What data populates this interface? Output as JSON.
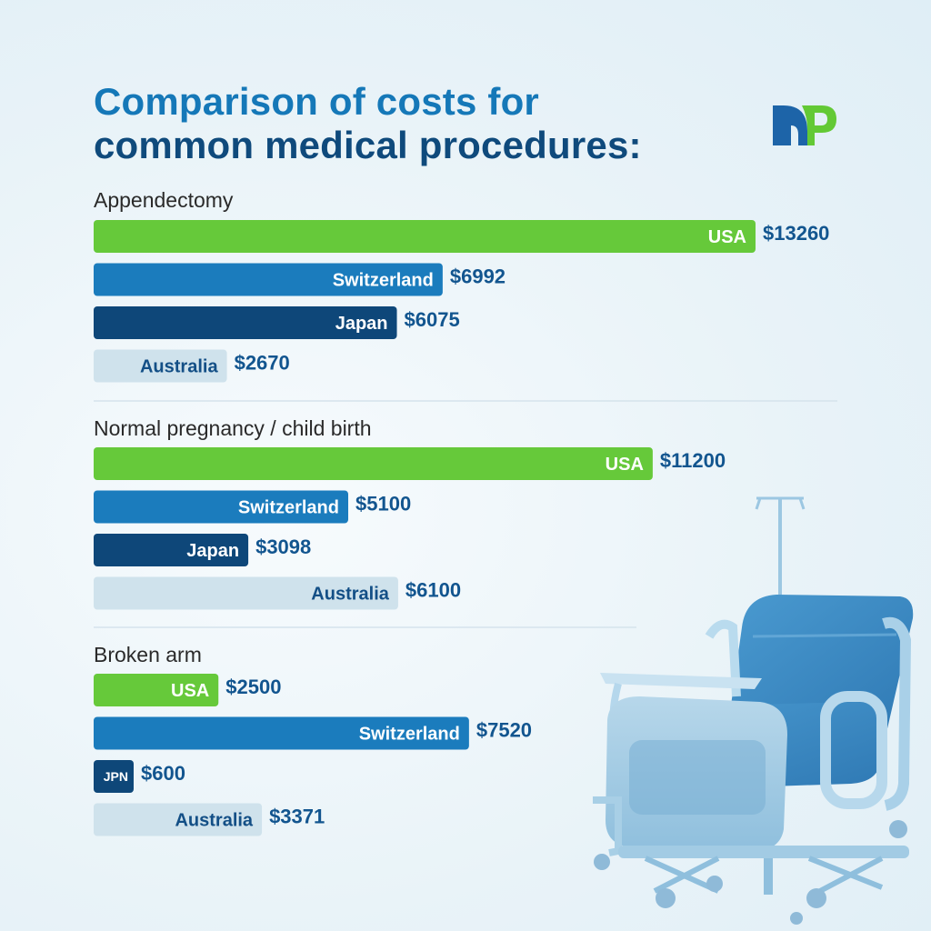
{
  "title": {
    "line1": "Comparison of costs for",
    "line2": "common medical procedures:"
  },
  "colors": {
    "title_line1": "#1578b8",
    "title_line2": "#0f4a7c",
    "value_text": "#12558f",
    "group_title": "#2a2a2a",
    "divider": "#d5e3ec",
    "logo_dark": "#1d64a8",
    "logo_green": "#63c935",
    "USA": "#66c93a",
    "Switzerland": "#1b7cbd",
    "Japan": "#0e4779",
    "Australia": "#cfe2ec",
    "label_light": "#ffffff",
    "label_dark": "#134f86"
  },
  "icons": [
    "np-logo-icon",
    "hospital-bed-illustration"
  ],
  "chart_data": {
    "type": "bar",
    "orientation": "horizontal",
    "title": "Comparison of costs for common medical procedures:",
    "groups": [
      {
        "name": "Appendectomy",
        "bars": [
          {
            "label": "USA",
            "value": 13260,
            "value_label": "$13260"
          },
          {
            "label": "Switzerland",
            "value": 6992,
            "value_label": "$6992"
          },
          {
            "label": "Japan",
            "value": 6075,
            "value_label": "$6075"
          },
          {
            "label": "Australia",
            "value": 2670,
            "value_label": "$2670"
          }
        ]
      },
      {
        "name": "Normal pregnancy / child birth",
        "bars": [
          {
            "label": "USA",
            "value": 11200,
            "value_label": "$11200"
          },
          {
            "label": "Switzerland",
            "value": 5100,
            "value_label": "$5100"
          },
          {
            "label": "Japan",
            "value": 3098,
            "value_label": "$3098"
          },
          {
            "label": "Australia",
            "value": 6100,
            "value_label": "$6100"
          }
        ]
      },
      {
        "name": "Broken arm",
        "bars": [
          {
            "label": "USA",
            "value": 2500,
            "value_label": "$2500"
          },
          {
            "label": "Switzerland",
            "value": 7520,
            "value_label": "$7520"
          },
          {
            "label": "JPN",
            "value": 600,
            "value_label": "$600"
          },
          {
            "label": "Australia",
            "value": 3371,
            "value_label": "$3371"
          }
        ]
      }
    ]
  }
}
